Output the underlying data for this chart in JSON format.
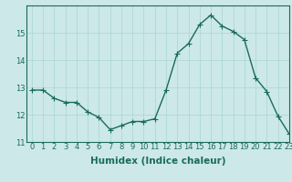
{
  "x": [
    0,
    1,
    2,
    3,
    4,
    5,
    6,
    7,
    8,
    9,
    10,
    11,
    12,
    13,
    14,
    15,
    16,
    17,
    18,
    19,
    20,
    21,
    22,
    23
  ],
  "y": [
    12.9,
    12.9,
    12.6,
    12.45,
    12.45,
    12.1,
    11.9,
    11.45,
    11.6,
    11.75,
    11.75,
    11.85,
    12.9,
    14.25,
    14.6,
    15.3,
    15.65,
    15.25,
    15.05,
    14.75,
    13.35,
    12.85,
    11.95,
    11.3
  ],
  "xlabel": "Humidex (Indice chaleur)",
  "ylim": [
    11,
    16
  ],
  "xlim": [
    -0.5,
    23
  ],
  "yticks": [
    11,
    12,
    13,
    14,
    15
  ],
  "ytick_labels": [
    "11",
    "12",
    "13",
    "14",
    "15"
  ],
  "xticks": [
    0,
    1,
    2,
    3,
    4,
    5,
    6,
    7,
    8,
    9,
    10,
    11,
    12,
    13,
    14,
    15,
    16,
    17,
    18,
    19,
    20,
    21,
    22,
    23
  ],
  "line_color": "#1a6b5a",
  "marker": "+",
  "marker_size": 4,
  "marker_linewidth": 0.8,
  "linewidth": 1.0,
  "bg_color": "#cce8e8",
  "grid_color": "#aad4d4",
  "tick_label_fontsize": 6,
  "xlabel_fontsize": 7.5
}
